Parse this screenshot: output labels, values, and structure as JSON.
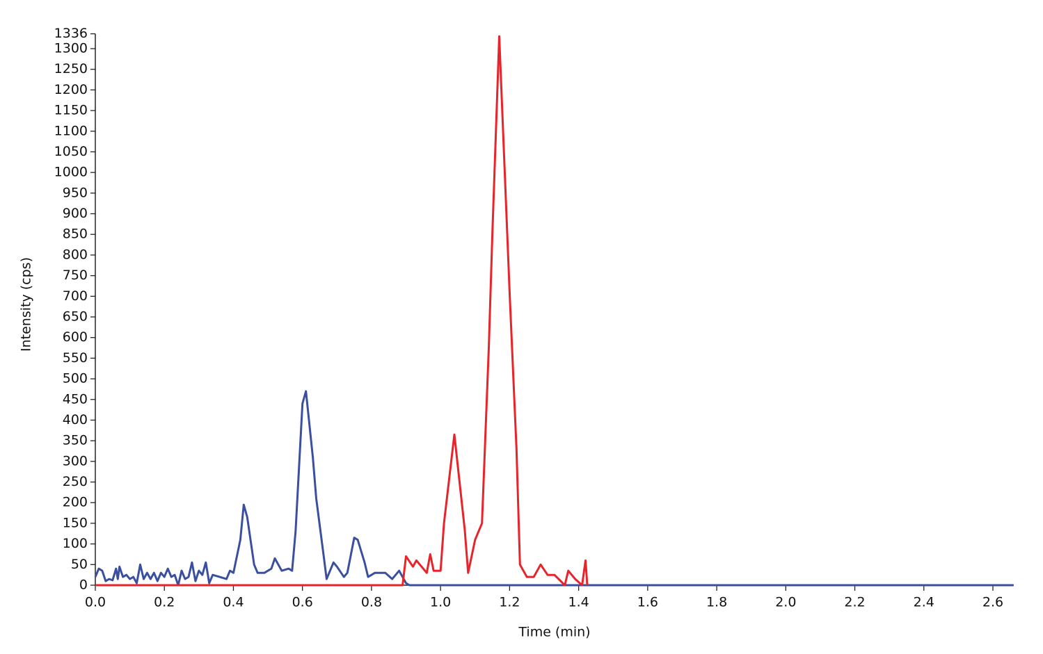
{
  "chart_data": {
    "type": "line",
    "x_label": "Time (min)",
    "y_label": "Intensity (cps)",
    "xlim": [
      0,
      2.66
    ],
    "ylim": [
      0,
      1336
    ],
    "xticks": [
      {
        "value": 0,
        "label": "0.0"
      },
      0.2,
      0.4,
      0.6,
      0.8,
      {
        "value": 1,
        "label": "1.0"
      },
      1.2,
      1.4,
      1.6,
      1.8,
      {
        "value": 2,
        "label": "2.0"
      },
      2.2,
      2.4,
      2.6
    ],
    "yticks": [
      0,
      50,
      100,
      150,
      200,
      250,
      300,
      350,
      400,
      450,
      500,
      550,
      600,
      650,
      700,
      750,
      800,
      850,
      900,
      950,
      1000,
      1050,
      1100,
      1150,
      1200,
      1250,
      1300,
      1336
    ],
    "series": [
      {
        "color": "#3a4fa0",
        "x": [
          0,
          0.01,
          0.02,
          0.03,
          0.04,
          0.05,
          0.06,
          0.065,
          0.07,
          0.08,
          0.09,
          0.1,
          0.11,
          0.12,
          0.13,
          0.14,
          0.15,
          0.16,
          0.17,
          0.18,
          0.19,
          0.2,
          0.21,
          0.22,
          0.23,
          0.24,
          0.25,
          0.26,
          0.27,
          0.28,
          0.29,
          0.3,
          0.31,
          0.32,
          0.33,
          0.34,
          0.36,
          0.38,
          0.39,
          0.4,
          0.42,
          0.43,
          0.44,
          0.46,
          0.47,
          0.49,
          0.51,
          0.52,
          0.54,
          0.56,
          0.57,
          0.58,
          0.6,
          0.61,
          0.63,
          0.64,
          0.66,
          0.67,
          0.69,
          0.7,
          0.72,
          0.73,
          0.75,
          0.76,
          0.78,
          0.79,
          0.81,
          0.84,
          0.86,
          0.88,
          0.9,
          0.91,
          2.66
        ],
        "values": [
          20,
          40,
          35,
          10,
          15,
          12,
          40,
          15,
          45,
          20,
          25,
          15,
          20,
          5,
          50,
          15,
          30,
          15,
          30,
          10,
          30,
          20,
          40,
          20,
          25,
          0,
          35,
          15,
          20,
          55,
          10,
          35,
          25,
          55,
          5,
          25,
          20,
          15,
          35,
          30,
          110,
          195,
          165,
          50,
          30,
          30,
          40,
          65,
          35,
          40,
          35,
          130,
          440,
          470,
          310,
          210,
          80,
          15,
          55,
          45,
          20,
          30,
          115,
          110,
          55,
          20,
          30,
          30,
          15,
          35,
          5,
          0,
          0
        ]
      },
      {
        "color": "#e8232a",
        "x": [
          0,
          0.89,
          0.9,
          0.92,
          0.93,
          0.96,
          0.97,
          0.98,
          1.0,
          1.01,
          1.04,
          1.07,
          1.08,
          1.1,
          1.12,
          1.14,
          1.15,
          1.17,
          1.2,
          1.22,
          1.23,
          1.25,
          1.27,
          1.29,
          1.31,
          1.33,
          1.36,
          1.37,
          1.39,
          1.41,
          1.42,
          1.425
        ],
        "values": [
          0,
          0,
          70,
          45,
          60,
          30,
          75,
          35,
          35,
          150,
          365,
          135,
          30,
          110,
          150,
          580,
          850,
          1330,
          710,
          330,
          50,
          20,
          20,
          50,
          25,
          25,
          0,
          35,
          15,
          0,
          60,
          0
        ]
      }
    ]
  }
}
